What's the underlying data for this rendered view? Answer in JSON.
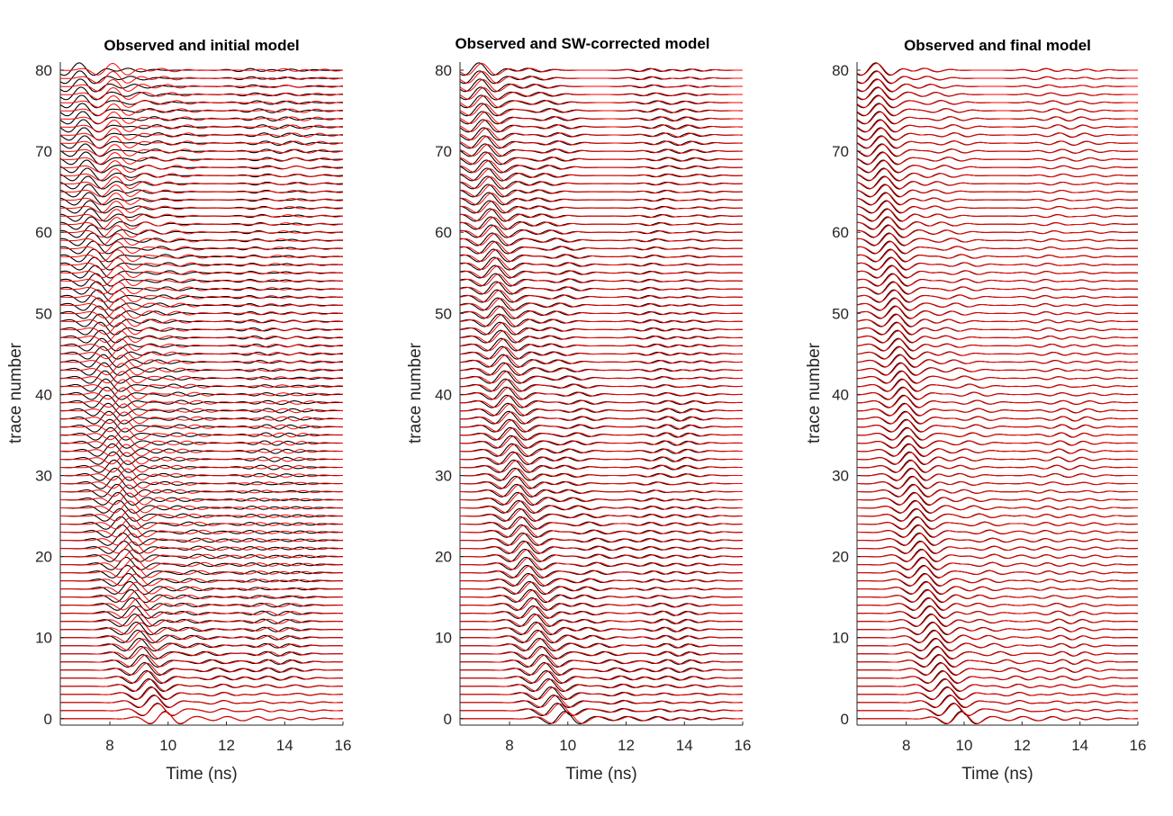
{
  "chart_data": [
    {
      "type": "line",
      "title": "Observed and initial model",
      "xlabel": "Time (ns)",
      "ylabel": "trace number",
      "xlim": [
        6.3,
        16
      ],
      "ylim": [
        -0.8,
        81
      ],
      "xticks": [
        8,
        10,
        12,
        14,
        16
      ],
      "yticks": [
        0,
        10,
        20,
        30,
        40,
        50,
        60,
        70,
        80
      ],
      "n_traces": 81,
      "series": [
        {
          "name": "observed",
          "color": "#000000"
        },
        {
          "name": "model",
          "color": "#ff0000"
        }
      ],
      "model_shift_ns": {
        "near_trace_0": 0.0,
        "near_trace_80": 1.15
      }
    },
    {
      "type": "line",
      "title": "Observed and SW-corrected model",
      "xlabel": "Time (ns)",
      "ylabel": "trace number",
      "xlim": [
        6.3,
        16
      ],
      "ylim": [
        -0.8,
        81
      ],
      "xticks": [
        8,
        10,
        12,
        14,
        16
      ],
      "yticks": [
        0,
        10,
        20,
        30,
        40,
        50,
        60,
        70,
        80
      ],
      "n_traces": 81,
      "series": [
        {
          "name": "observed",
          "color": "#000000"
        },
        {
          "name": "model",
          "color": "#ff0000"
        }
      ],
      "model_shift_ns": {
        "near_trace_0": 0.08,
        "near_trace_80": 0.1
      }
    },
    {
      "type": "line",
      "title": "Observed and final model",
      "xlabel": "Time (ns)",
      "ylabel": "trace number",
      "xlim": [
        6.3,
        16
      ],
      "ylim": [
        -0.8,
        81
      ],
      "xticks": [
        8,
        10,
        12,
        14,
        16
      ],
      "yticks": [
        0,
        10,
        20,
        30,
        40,
        50,
        60,
        70,
        80
      ],
      "n_traces": 81,
      "series": [
        {
          "name": "observed",
          "color": "#000000"
        },
        {
          "name": "model",
          "color": "#ff0000"
        }
      ],
      "model_shift_ns": {
        "near_trace_0": 0.03,
        "near_trace_80": 0.03
      }
    }
  ]
}
